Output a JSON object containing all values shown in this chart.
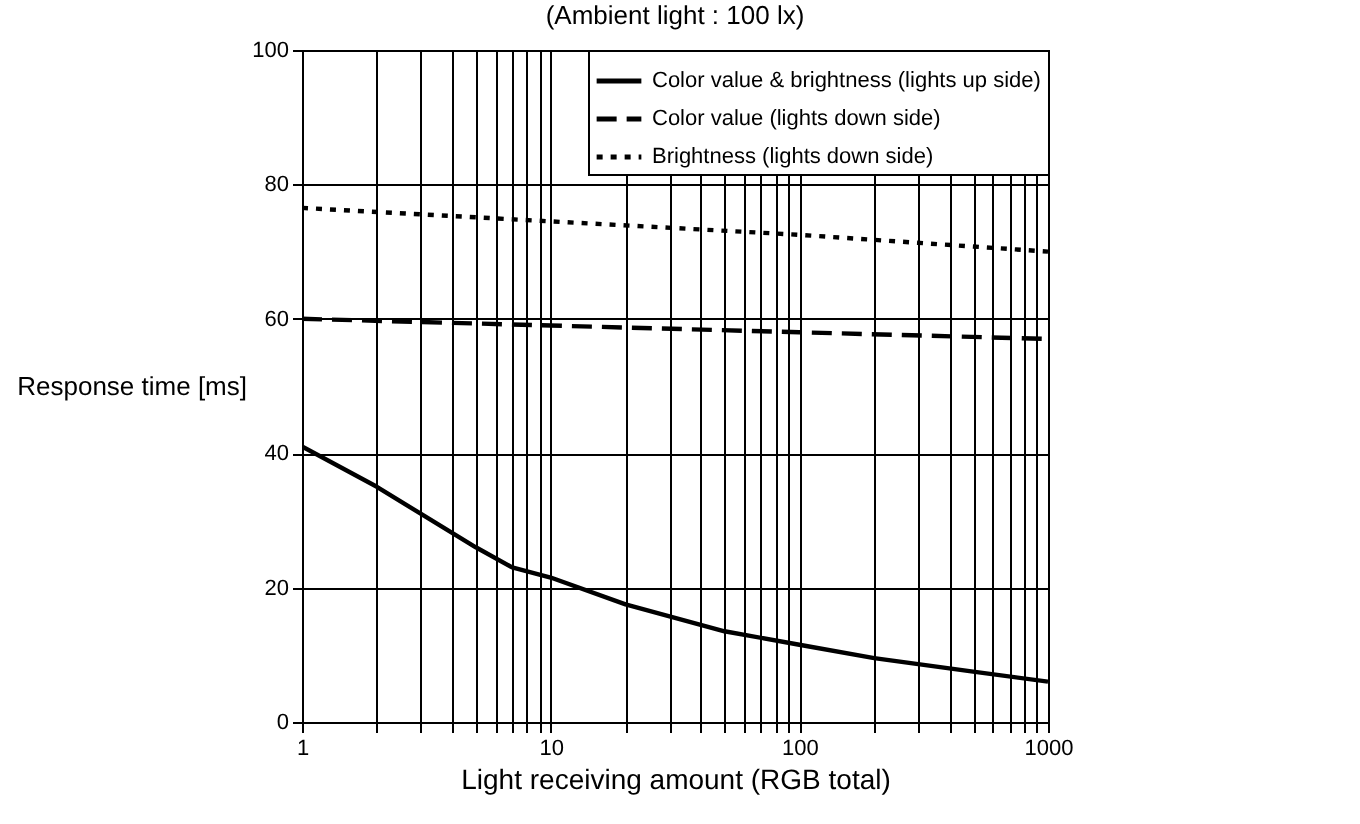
{
  "chart_data": {
    "type": "line",
    "title": "(Ambient light : 100 lx)",
    "xlabel": "Light receiving amount (RGB total)",
    "ylabel": "Response time [ms]",
    "log": "x",
    "grid": true,
    "legend": "top right",
    "xlim": [
      1,
      1000
    ],
    "ylim": [
      0,
      100
    ],
    "xticks": [
      1,
      {
        "value": 2,
        "label": null
      },
      {
        "value": 3,
        "label": null
      },
      {
        "value": 4,
        "label": null
      },
      {
        "value": 5,
        "label": null
      },
      {
        "value": 6,
        "label": null
      },
      {
        "value": 7,
        "label": null
      },
      {
        "value": 8,
        "label": null
      },
      {
        "value": 9,
        "label": null
      },
      10,
      {
        "value": 20,
        "label": null
      },
      {
        "value": 30,
        "label": null
      },
      {
        "value": 40,
        "label": null
      },
      {
        "value": 50,
        "label": null
      },
      {
        "value": 60,
        "label": null
      },
      {
        "value": 70,
        "label": null
      },
      {
        "value": 80,
        "label": null
      },
      {
        "value": 90,
        "label": null
      },
      100,
      {
        "value": 200,
        "label": null
      },
      {
        "value": 300,
        "label": null
      },
      {
        "value": 400,
        "label": null
      },
      {
        "value": 500,
        "label": null
      },
      {
        "value": 600,
        "label": null
      },
      {
        "value": 700,
        "label": null
      },
      {
        "value": 800,
        "label": null
      },
      {
        "value": 900,
        "label": null
      },
      1000
    ],
    "yticks": [
      0,
      20,
      40,
      60,
      80,
      100
    ],
    "series": [
      {
        "name": "Color value & brightness (lights up side)",
        "color": "#000000",
        "line_style": "solid",
        "x": [
          1,
          2,
          3,
          5,
          7,
          10,
          20,
          50,
          100,
          200,
          500,
          1000
        ],
        "values": [
          41,
          35,
          31,
          26,
          23,
          21.5,
          17.5,
          13.5,
          11.5,
          9.5,
          7.5,
          6
        ]
      },
      {
        "name": "Color value (lights down side)",
        "color": "#000000",
        "line_style": "dashed",
        "x": [
          1,
          10,
          100,
          1000
        ],
        "values": [
          60,
          59,
          58,
          57
        ]
      },
      {
        "name": "Brightness (lights down side)",
        "color": "#000000",
        "line_style": "dotted",
        "x": [
          1,
          10,
          100,
          1000
        ],
        "values": [
          76.5,
          74.5,
          72.5,
          70
        ]
      }
    ]
  }
}
